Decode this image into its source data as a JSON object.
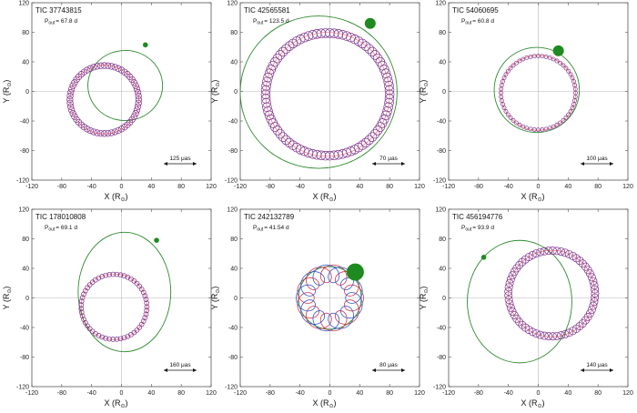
{
  "axes": {
    "xlabel": "X (R",
    "ylabel": "Y (R",
    "sun": "⊙",
    "range": [
      -120,
      120
    ],
    "ticks": [
      -120,
      -80,
      -40,
      0,
      40,
      80,
      120
    ]
  },
  "colors": {
    "orbit": "#2e8b2e",
    "companion": "#1f8a1f",
    "loop_a": "#d2334a",
    "loop_b": "#3355cc",
    "ring_stroke": "#7a2e8a",
    "axis": "#555555"
  },
  "chart_data": [
    {
      "type": "scatter",
      "title": "TIC 37743815",
      "period_label": "P",
      "period_sub": "out",
      "period_value": "= 67.8 d",
      "scale_label": "125 μas",
      "orbit": {
        "center": [
          5,
          8
        ],
        "semi_axes": [
          50,
          47
        ]
      },
      "companion": {
        "position": [
          32,
          63
        ],
        "size": "small"
      },
      "ring": {
        "center": [
          -23,
          -11
        ],
        "radius": 46,
        "loops": 60,
        "loop_radius": 4
      }
    },
    {
      "type": "scatter",
      "title": "TIC 42565581",
      "period_label": "P",
      "period_sub": "out",
      "period_value": "= 123.5 d",
      "scale_label": "70 μas",
      "orbit": {
        "center": [
          -15,
          -1
        ],
        "semi_axes": [
          105,
          102
        ]
      },
      "companion": {
        "position": [
          54,
          92
        ],
        "size": "medium"
      },
      "ring": {
        "center": [
          -3,
          -4
        ],
        "radius": 83,
        "loops": 90,
        "loop_radius": 6
      }
    },
    {
      "type": "scatter",
      "title": "TIC 54060695",
      "period_label": "P",
      "period_sub": "out",
      "period_value": "= 60.8 d",
      "scale_label": "100 μas",
      "orbit": {
        "center": [
          -2,
          2
        ],
        "semi_axes": [
          57,
          57
        ]
      },
      "companion": {
        "position": [
          27,
          55
        ],
        "size": "medium"
      },
      "ring": {
        "center": [
          0,
          -2
        ],
        "radius": 50,
        "loops": 60,
        "loop_radius": 2.5
      }
    },
    {
      "type": "scatter",
      "title": "TIC 178010808",
      "period_label": "P",
      "period_sub": "out",
      "period_value": "= 69.1 d",
      "scale_label": "160 μas",
      "orbit": {
        "center": [
          4,
          8
        ],
        "semi_axes": [
          62,
          80
        ]
      },
      "companion": {
        "position": [
          47,
          78
        ],
        "size": "small"
      },
      "ring": {
        "center": [
          -10,
          -12
        ],
        "radius": 44,
        "loops": 55,
        "loop_radius": 3
      }
    },
    {
      "type": "scatter",
      "title": "TIC 242132789",
      "period_label": "P",
      "period_sub": "out",
      "period_value": "= 41.54 d",
      "scale_label": "80 μas",
      "orbit": {
        "center": [
          0,
          0
        ],
        "semi_axes": [
          42,
          42
        ]
      },
      "companion": {
        "position": [
          34,
          35
        ],
        "size": "large"
      },
      "ring": {
        "center": [
          0,
          0
        ],
        "radius": 33,
        "loops": 10,
        "loop_radius": 12,
        "style": "epicycle"
      }
    },
    {
      "type": "scatter",
      "title": "TIC 456194776",
      "period_label": "P",
      "period_sub": "out",
      "period_value": "= 93.9 d",
      "scale_label": "140 μas",
      "orbit": {
        "center": [
          -25,
          -5
        ],
        "semi_axes": [
          70,
          82
        ]
      },
      "companion": {
        "position": [
          -73,
          55
        ],
        "size": "small"
      },
      "ring": {
        "center": [
          18,
          6
        ],
        "radius": 58,
        "loops": 65,
        "loop_radius": 5
      }
    }
  ]
}
